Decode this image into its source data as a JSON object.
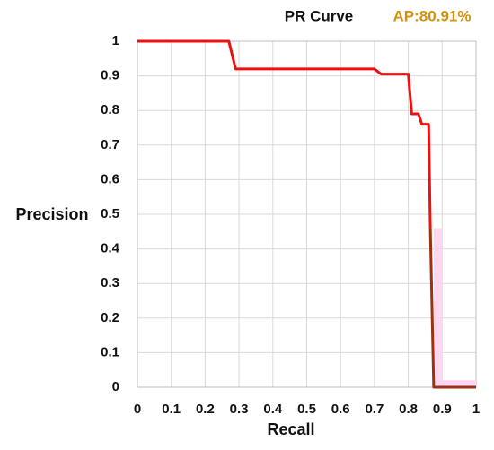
{
  "chart_data": {
    "type": "line",
    "title": "PR Curve",
    "annotation": "AP:80.91%",
    "x_label": "Recall",
    "y_label": "Precision",
    "xlim": [
      0,
      1
    ],
    "ylim": [
      0,
      1
    ],
    "xticks": [
      0,
      0.1,
      0.2,
      0.3,
      0.4,
      0.5,
      0.6,
      0.7,
      0.8,
      0.9,
      1
    ],
    "yticks": [
      0,
      0.1,
      0.2,
      0.3,
      0.4,
      0.5,
      0.6,
      0.7,
      0.8,
      0.9,
      1
    ],
    "grid": true,
    "series": [
      {
        "type": "area",
        "color": "#ffd6f0",
        "x": [
          0.875,
          0.9,
          0.9,
          1
        ],
        "values": [
          0.46,
          0.46,
          0.02,
          0.02
        ]
      },
      {
        "type": "line",
        "color": "#ee1111",
        "x": [
          0,
          0.27,
          0.29,
          0.7,
          0.72,
          0.8,
          0.81,
          0.83,
          0.84,
          0.86,
          0.865
        ],
        "values": [
          1,
          1,
          0.92,
          0.92,
          0.905,
          0.905,
          0.79,
          0.79,
          0.76,
          0.76,
          0.46
        ]
      },
      {
        "type": "line",
        "color": "#993311",
        "x": [
          0.865,
          0.875,
          1
        ],
        "values": [
          0.46,
          0,
          0
        ]
      }
    ]
  }
}
